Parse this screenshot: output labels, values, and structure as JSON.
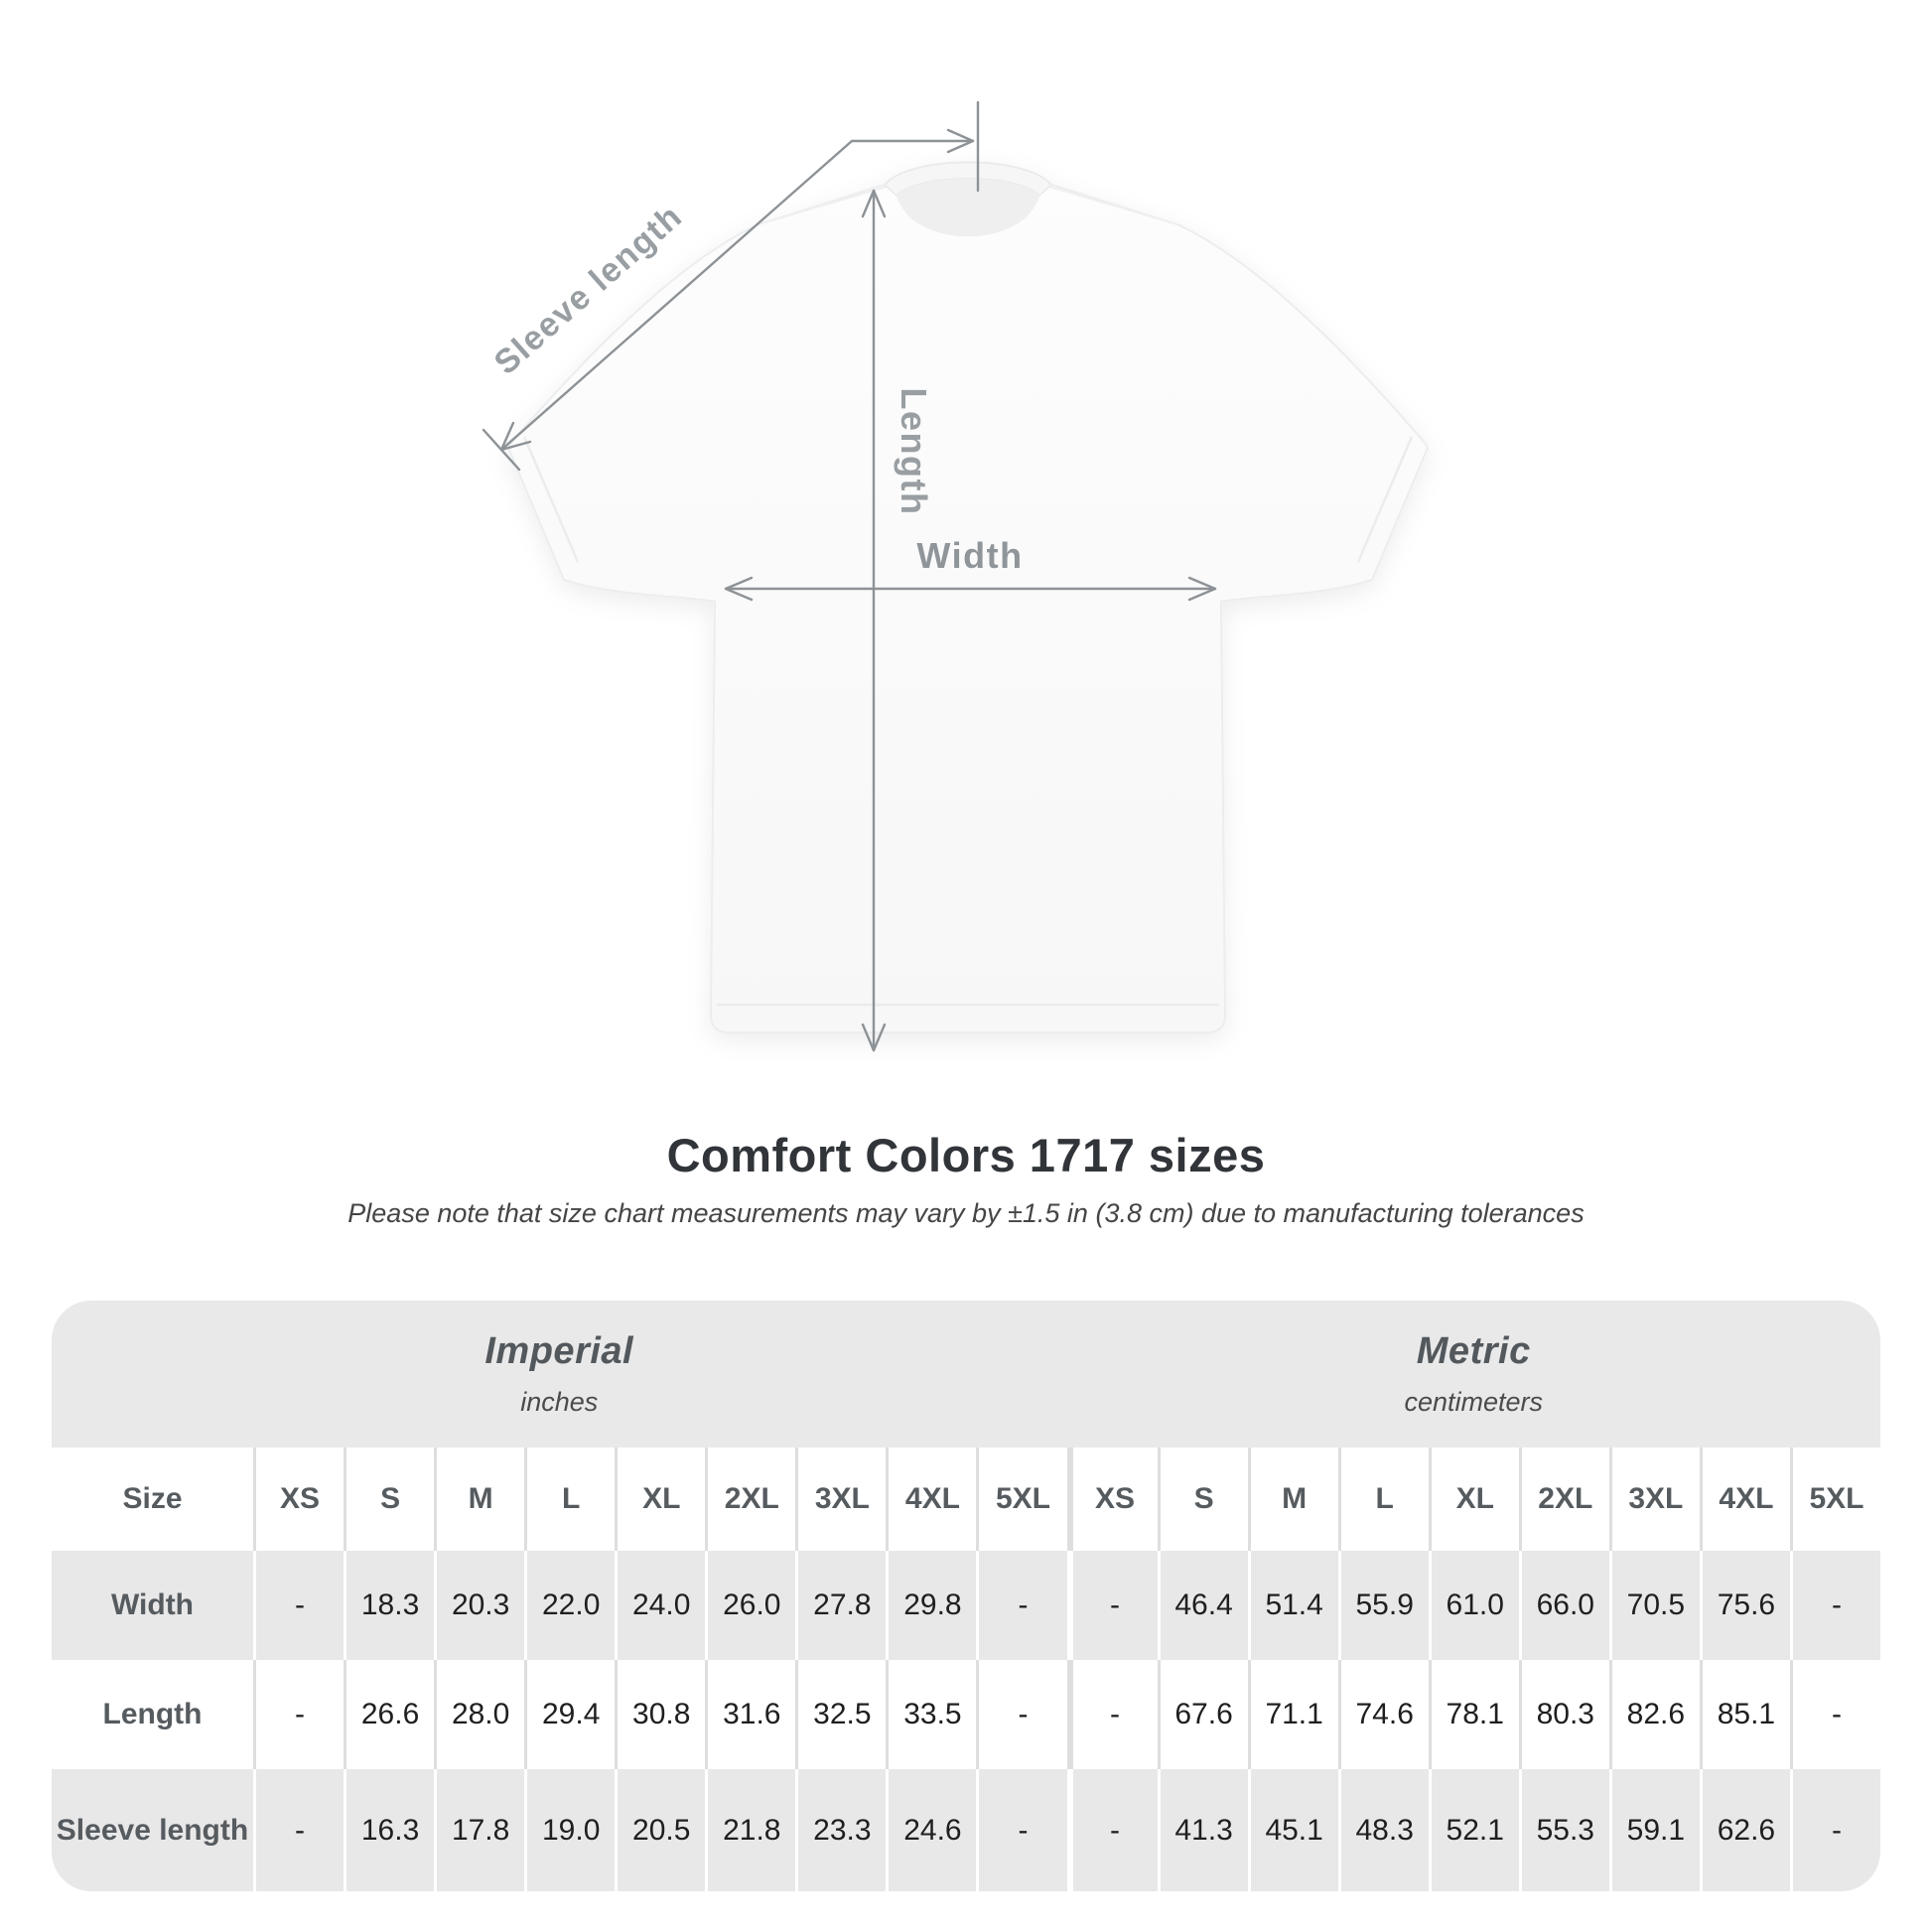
{
  "diagram": {
    "sleeve_label": "Sleeve length",
    "length_label": "Length",
    "width_label": "Width"
  },
  "title": "Comfort Colors 1717 sizes",
  "note": "Please note that size chart measurements may vary by ±1.5 in (3.8 cm) due to manufacturing tolerances",
  "table": {
    "unit_groups": [
      {
        "name": "Imperial",
        "unit": "inches"
      },
      {
        "name": "Metric",
        "unit": "centimeters"
      }
    ],
    "size_header_label": "Size",
    "sizes": [
      "XS",
      "S",
      "M",
      "L",
      "XL",
      "2XL",
      "3XL",
      "4XL",
      "5XL"
    ],
    "rows": [
      {
        "label": "Width",
        "imperial": [
          "-",
          "18.3",
          "20.3",
          "22.0",
          "24.0",
          "26.0",
          "27.8",
          "29.8",
          "-"
        ],
        "metric": [
          "-",
          "46.4",
          "51.4",
          "55.9",
          "61.0",
          "66.0",
          "70.5",
          "75.6",
          "-"
        ]
      },
      {
        "label": "Length",
        "imperial": [
          "-",
          "26.6",
          "28.0",
          "29.4",
          "30.8",
          "31.6",
          "32.5",
          "33.5",
          "-"
        ],
        "metric": [
          "-",
          "67.6",
          "71.1",
          "74.6",
          "78.1",
          "80.3",
          "82.6",
          "85.1",
          "-"
        ]
      },
      {
        "label": "Sleeve length",
        "imperial": [
          "-",
          "16.3",
          "17.8",
          "19.0",
          "20.5",
          "21.8",
          "23.3",
          "24.6",
          "-"
        ],
        "metric": [
          "-",
          "41.3",
          "45.1",
          "48.3",
          "52.1",
          "55.3",
          "59.1",
          "62.6",
          "-"
        ]
      }
    ]
  },
  "colors": {
    "measure_line": "#8d9296",
    "measure_label": "#989ea2",
    "table_band": "#e8e8e9",
    "title_text": "#313539"
  }
}
